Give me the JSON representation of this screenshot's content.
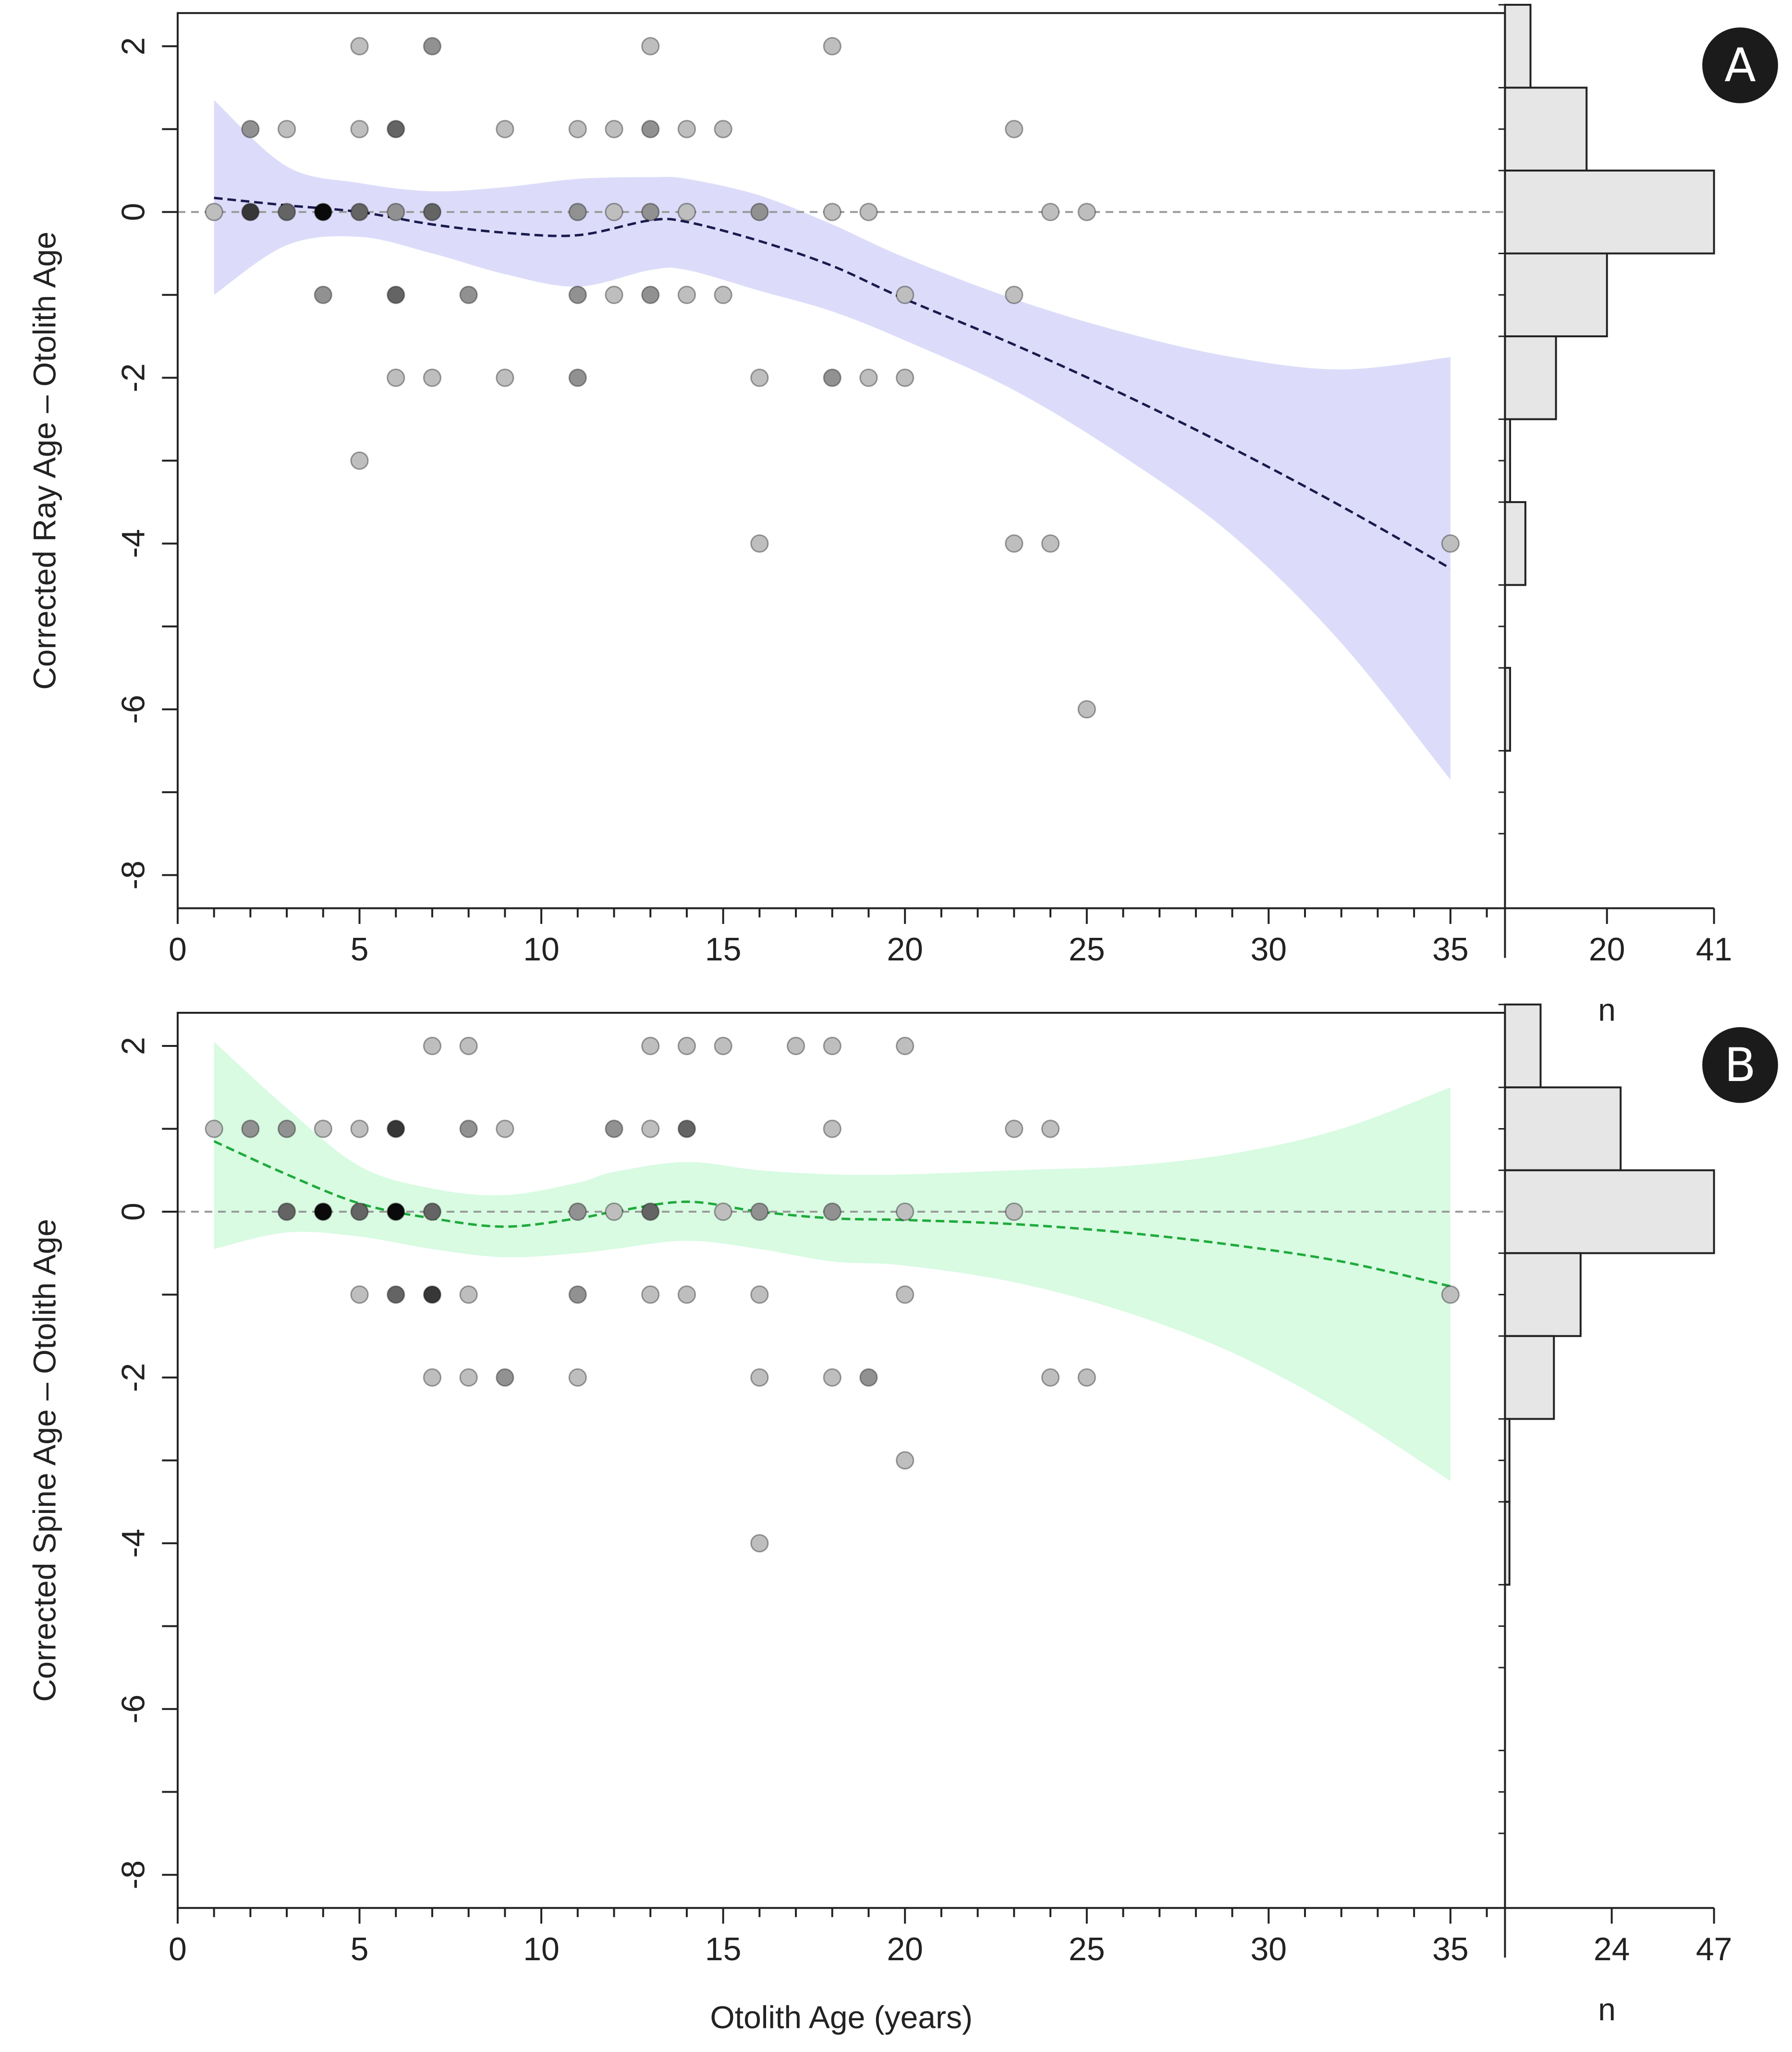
{
  "figure": {
    "xlabel": "Otolith Age (years)",
    "x_ticks": [
      0,
      5,
      10,
      15,
      20,
      25,
      30,
      35
    ],
    "y_ticks": [
      2,
      0,
      -2,
      -4,
      -6,
      -8
    ]
  },
  "chart_data": [
    {
      "type": "scatter",
      "panel_label": "A",
      "ylabel": "Corrected Ray Age – Otolith Age",
      "xlabel": "",
      "xlim": [
        0,
        36.5
      ],
      "ylim": [
        -8.4,
        2.4
      ],
      "points": [
        {
          "x": 1,
          "y": 0,
          "n": 1
        },
        {
          "x": 2,
          "y": 1,
          "n": 2
        },
        {
          "x": 2,
          "y": 0,
          "n": 4
        },
        {
          "x": 3,
          "y": 1,
          "n": 1
        },
        {
          "x": 3,
          "y": 0,
          "n": 3
        },
        {
          "x": 4,
          "y": 0,
          "n": 5
        },
        {
          "x": 4,
          "y": -1,
          "n": 2
        },
        {
          "x": 5,
          "y": 2,
          "n": 1
        },
        {
          "x": 5,
          "y": 1,
          "n": 1
        },
        {
          "x": 5,
          "y": 0,
          "n": 3
        },
        {
          "x": 5,
          "y": -3,
          "n": 1
        },
        {
          "x": 6,
          "y": 1,
          "n": 3
        },
        {
          "x": 6,
          "y": 0,
          "n": 2
        },
        {
          "x": 6,
          "y": -1,
          "n": 3
        },
        {
          "x": 6,
          "y": -2,
          "n": 1
        },
        {
          "x": 7,
          "y": 2,
          "n": 2
        },
        {
          "x": 7,
          "y": 0,
          "n": 3
        },
        {
          "x": 7,
          "y": -2,
          "n": 1
        },
        {
          "x": 8,
          "y": -1,
          "n": 2
        },
        {
          "x": 9,
          "y": 1,
          "n": 1
        },
        {
          "x": 9,
          "y": -2,
          "n": 1
        },
        {
          "x": 11,
          "y": 1,
          "n": 1
        },
        {
          "x": 11,
          "y": 0,
          "n": 2
        },
        {
          "x": 11,
          "y": -1,
          "n": 2
        },
        {
          "x": 11,
          "y": -2,
          "n": 2
        },
        {
          "x": 12,
          "y": 1,
          "n": 1
        },
        {
          "x": 12,
          "y": 0,
          "n": 1
        },
        {
          "x": 12,
          "y": -1,
          "n": 1
        },
        {
          "x": 13,
          "y": 2,
          "n": 1
        },
        {
          "x": 13,
          "y": 1,
          "n": 2
        },
        {
          "x": 13,
          "y": 0,
          "n": 2
        },
        {
          "x": 13,
          "y": -1,
          "n": 2
        },
        {
          "x": 14,
          "y": 1,
          "n": 1
        },
        {
          "x": 14,
          "y": 0,
          "n": 1
        },
        {
          "x": 14,
          "y": -1,
          "n": 1
        },
        {
          "x": 15,
          "y": 1,
          "n": 1
        },
        {
          "x": 15,
          "y": -1,
          "n": 1
        },
        {
          "x": 16,
          "y": 0,
          "n": 2
        },
        {
          "x": 16,
          "y": -2,
          "n": 1
        },
        {
          "x": 16,
          "y": -4,
          "n": 1
        },
        {
          "x": 18,
          "y": 2,
          "n": 1
        },
        {
          "x": 18,
          "y": 0,
          "n": 1
        },
        {
          "x": 18,
          "y": -2,
          "n": 2
        },
        {
          "x": 19,
          "y": 0,
          "n": 1
        },
        {
          "x": 19,
          "y": -2,
          "n": 1
        },
        {
          "x": 20,
          "y": -1,
          "n": 1
        },
        {
          "x": 20,
          "y": -2,
          "n": 1
        },
        {
          "x": 23,
          "y": 1,
          "n": 1
        },
        {
          "x": 23,
          "y": -1,
          "n": 1
        },
        {
          "x": 23,
          "y": -4,
          "n": 1
        },
        {
          "x": 24,
          "y": 0,
          "n": 1
        },
        {
          "x": 24,
          "y": -4,
          "n": 1
        },
        {
          "x": 25,
          "y": 0,
          "n": 1
        },
        {
          "x": 25,
          "y": -6,
          "n": 1
        },
        {
          "x": 35,
          "y": -4,
          "n": 1
        }
      ],
      "trend_line": {
        "color": "#1a1a4e",
        "x": [
          1,
          3,
          5,
          7,
          9,
          11,
          13,
          14,
          16,
          18,
          20,
          23,
          26,
          29,
          32,
          35
        ],
        "y": [
          0.17,
          0.08,
          0.0,
          -0.15,
          -0.25,
          -0.28,
          -0.1,
          -0.12,
          -0.35,
          -0.65,
          -1.05,
          -1.6,
          -2.2,
          -2.85,
          -3.55,
          -4.3
        ]
      },
      "confidence_band": {
        "color": "#dcdcfa",
        "x": [
          1,
          3,
          5,
          7,
          9,
          11,
          13,
          14,
          16,
          18,
          20,
          23,
          26,
          29,
          32,
          35
        ],
        "upper": [
          1.35,
          0.55,
          0.35,
          0.25,
          0.3,
          0.4,
          0.42,
          0.4,
          0.2,
          -0.15,
          -0.55,
          -1.05,
          -1.45,
          -1.75,
          -1.9,
          -1.75
        ],
        "lower": [
          -1.0,
          -0.4,
          -0.3,
          -0.5,
          -0.75,
          -0.9,
          -0.7,
          -0.7,
          -0.95,
          -1.2,
          -1.55,
          -2.15,
          -2.95,
          -3.9,
          -5.2,
          -6.85
        ]
      },
      "reference_line_y": 0,
      "histogram": {
        "xlabel": "n",
        "tick_labels": [
          "20",
          "41"
        ],
        "max": 41,
        "bins": [
          {
            "y0": 2.5,
            "y1": 1.5,
            "count": 5
          },
          {
            "y0": 1.5,
            "y1": 0.5,
            "count": 16
          },
          {
            "y0": 0.5,
            "y1": -0.5,
            "count": 41
          },
          {
            "y0": -0.5,
            "y1": -1.5,
            "count": 20
          },
          {
            "y0": -1.5,
            "y1": -2.5,
            "count": 10
          },
          {
            "y0": -2.5,
            "y1": -3.5,
            "count": 1
          },
          {
            "y0": -3.5,
            "y1": -4.5,
            "count": 4
          },
          {
            "y0": -4.5,
            "y1": -5.5,
            "count": 0
          },
          {
            "y0": -5.5,
            "y1": -6.5,
            "count": 1
          }
        ]
      }
    },
    {
      "type": "scatter",
      "panel_label": "B",
      "ylabel": "Corrected Spine Age – Otolith Age",
      "xlabel": "Otolith Age (years)",
      "xlim": [
        0,
        36.5
      ],
      "ylim": [
        -8.4,
        2.4
      ],
      "points": [
        {
          "x": 1,
          "y": 1,
          "n": 1
        },
        {
          "x": 2,
          "y": 1,
          "n": 2
        },
        {
          "x": 3,
          "y": 1,
          "n": 2
        },
        {
          "x": 3,
          "y": 0,
          "n": 3
        },
        {
          "x": 4,
          "y": 1,
          "n": 1
        },
        {
          "x": 4,
          "y": 0,
          "n": 5
        },
        {
          "x": 5,
          "y": 1,
          "n": 1
        },
        {
          "x": 5,
          "y": 0,
          "n": 3
        },
        {
          "x": 5,
          "y": -1,
          "n": 1
        },
        {
          "x": 6,
          "y": 1,
          "n": 4
        },
        {
          "x": 6,
          "y": 0,
          "n": 5
        },
        {
          "x": 6,
          "y": -1,
          "n": 3
        },
        {
          "x": 7,
          "y": 2,
          "n": 1
        },
        {
          "x": 7,
          "y": 0,
          "n": 3
        },
        {
          "x": 7,
          "y": -1,
          "n": 4
        },
        {
          "x": 7,
          "y": -2,
          "n": 1
        },
        {
          "x": 8,
          "y": 2,
          "n": 1
        },
        {
          "x": 8,
          "y": 1,
          "n": 2
        },
        {
          "x": 8,
          "y": -1,
          "n": 1
        },
        {
          "x": 8,
          "y": -2,
          "n": 1
        },
        {
          "x": 9,
          "y": 1,
          "n": 1
        },
        {
          "x": 9,
          "y": -2,
          "n": 2
        },
        {
          "x": 11,
          "y": 0,
          "n": 2
        },
        {
          "x": 11,
          "y": -1,
          "n": 2
        },
        {
          "x": 11,
          "y": -2,
          "n": 1
        },
        {
          "x": 12,
          "y": 1,
          "n": 2
        },
        {
          "x": 12,
          "y": 0,
          "n": 1
        },
        {
          "x": 13,
          "y": 2,
          "n": 1
        },
        {
          "x": 13,
          "y": 1,
          "n": 1
        },
        {
          "x": 13,
          "y": 0,
          "n": 3
        },
        {
          "x": 13,
          "y": -1,
          "n": 1
        },
        {
          "x": 14,
          "y": 2,
          "n": 1
        },
        {
          "x": 14,
          "y": 1,
          "n": 3
        },
        {
          "x": 14,
          "y": -1,
          "n": 1
        },
        {
          "x": 15,
          "y": 2,
          "n": 1
        },
        {
          "x": 15,
          "y": 0,
          "n": 1
        },
        {
          "x": 16,
          "y": 0,
          "n": 2
        },
        {
          "x": 16,
          "y": -1,
          "n": 1
        },
        {
          "x": 16,
          "y": -2,
          "n": 1
        },
        {
          "x": 16,
          "y": -4,
          "n": 1
        },
        {
          "x": 17,
          "y": 2,
          "n": 1
        },
        {
          "x": 18,
          "y": 2,
          "n": 1
        },
        {
          "x": 18,
          "y": 1,
          "n": 1
        },
        {
          "x": 18,
          "y": 0,
          "n": 2
        },
        {
          "x": 18,
          "y": -2,
          "n": 1
        },
        {
          "x": 19,
          "y": -2,
          "n": 2
        },
        {
          "x": 20,
          "y": 2,
          "n": 1
        },
        {
          "x": 20,
          "y": 0,
          "n": 1
        },
        {
          "x": 20,
          "y": -1,
          "n": 1
        },
        {
          "x": 20,
          "y": -3,
          "n": 1
        },
        {
          "x": 23,
          "y": 1,
          "n": 1
        },
        {
          "x": 23,
          "y": 0,
          "n": 1
        },
        {
          "x": 24,
          "y": 1,
          "n": 1
        },
        {
          "x": 24,
          "y": -2,
          "n": 1
        },
        {
          "x": 25,
          "y": -2,
          "n": 1
        },
        {
          "x": 35,
          "y": -1,
          "n": 1
        }
      ],
      "trend_line": {
        "color": "#1faa3c",
        "x": [
          1,
          3,
          5,
          7,
          9,
          11,
          12,
          14,
          16,
          18,
          20,
          23,
          26,
          29,
          32,
          35
        ],
        "y": [
          0.85,
          0.45,
          0.1,
          -0.08,
          -0.18,
          -0.08,
          0.0,
          0.12,
          0.0,
          -0.08,
          -0.1,
          -0.15,
          -0.25,
          -0.4,
          -0.6,
          -0.9
        ]
      },
      "confidence_band": {
        "color": "#d8fbe2",
        "x": [
          1,
          3,
          5,
          7,
          9,
          11,
          12,
          14,
          16,
          18,
          20,
          23,
          26,
          29,
          32,
          35
        ],
        "upper": [
          2.05,
          1.25,
          0.55,
          0.28,
          0.2,
          0.35,
          0.48,
          0.6,
          0.5,
          0.45,
          0.45,
          0.5,
          0.55,
          0.7,
          1.0,
          1.5
        ],
        "lower": [
          -0.45,
          -0.25,
          -0.3,
          -0.45,
          -0.55,
          -0.5,
          -0.45,
          -0.35,
          -0.45,
          -0.6,
          -0.65,
          -0.85,
          -1.2,
          -1.7,
          -2.4,
          -3.25
        ]
      },
      "reference_line_y": 0,
      "histogram": {
        "xlabel": "n",
        "tick_labels": [
          "24",
          "47"
        ],
        "max": 47,
        "bins": [
          {
            "y0": 2.5,
            "y1": 1.5,
            "count": 8
          },
          {
            "y0": 1.5,
            "y1": 0.5,
            "count": 26
          },
          {
            "y0": 0.5,
            "y1": -0.5,
            "count": 47
          },
          {
            "y0": -0.5,
            "y1": -1.5,
            "count": 17
          },
          {
            "y0": -1.5,
            "y1": -2.5,
            "count": 11
          },
          {
            "y0": -2.5,
            "y1": -3.5,
            "count": 1
          },
          {
            "y0": -3.5,
            "y1": -4.5,
            "count": 1
          }
        ]
      }
    }
  ]
}
